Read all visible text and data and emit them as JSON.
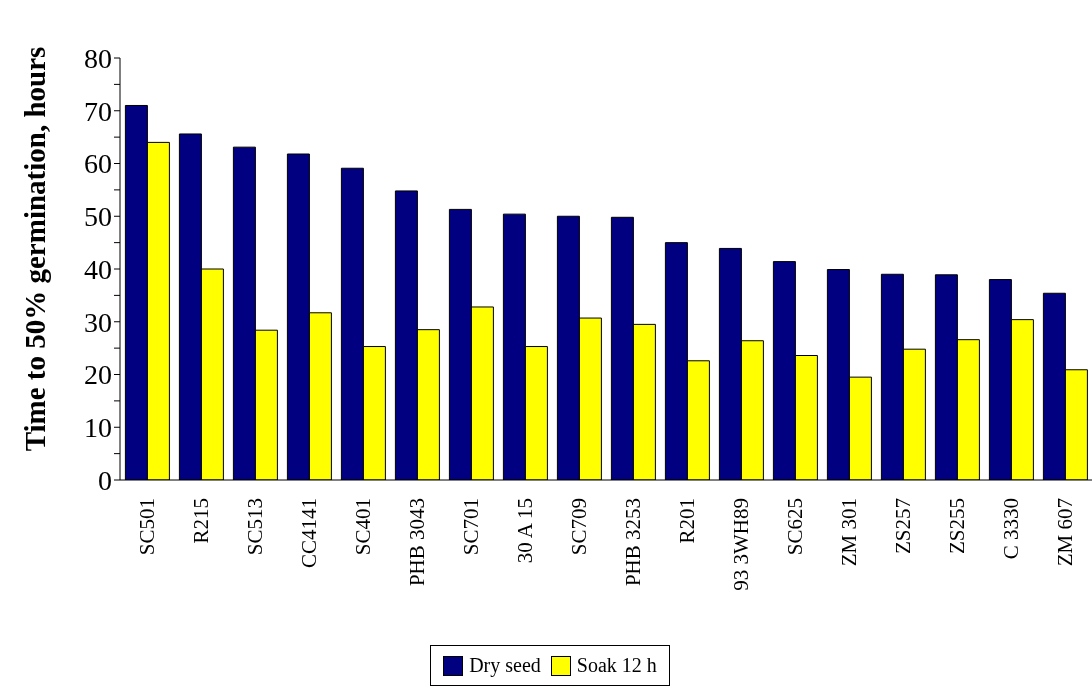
{
  "chart_data": {
    "type": "bar",
    "ylabel": "Time to 50% germination, hours",
    "categories": [
      "SC501",
      "R215",
      "SC513",
      "CC4141",
      "SC401",
      "PHB 3043",
      "SC701",
      "30 A 15",
      "SC709",
      "PHB 3253",
      "R201",
      "93 3WH89",
      "SC625",
      "ZM 301",
      "ZS257",
      "ZS255",
      "C 3330",
      "ZM 607"
    ],
    "series": [
      {
        "name": "Dry seed",
        "color": "#000080",
        "values": [
          71,
          65.6,
          63.1,
          61.8,
          59.1,
          54.8,
          51.3,
          50.4,
          50,
          49.8,
          45,
          43.9,
          41.4,
          39.9,
          39,
          38.9,
          38,
          35.4
        ]
      },
      {
        "name": "Soak 12 h",
        "color": "#ffff00",
        "values": [
          64,
          40,
          28.4,
          31.7,
          25.3,
          28.5,
          32.8,
          25.3,
          30.7,
          29.5,
          22.6,
          26.4,
          23.6,
          19.5,
          24.8,
          26.6,
          30.4,
          20.9
        ]
      }
    ],
    "ylim": [
      0,
      80
    ],
    "yticks": [
      0,
      {
        "value": 5,
        "label": null
      },
      10,
      {
        "value": 15,
        "label": null
      },
      20,
      {
        "value": 25,
        "label": null
      },
      30,
      {
        "value": 35,
        "label": null
      },
      40,
      {
        "value": 45,
        "label": null
      },
      50,
      {
        "value": 55,
        "label": null
      },
      60,
      {
        "value": 65,
        "label": null
      },
      70,
      {
        "value": 75,
        "label": null
      },
      80
    ],
    "grid": false,
    "legend": "bottom"
  }
}
